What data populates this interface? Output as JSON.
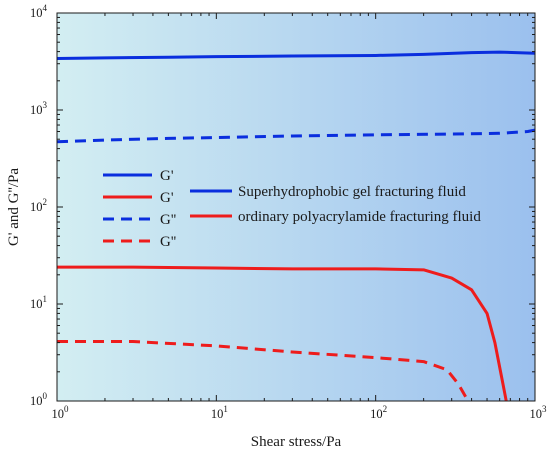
{
  "chart_data": {
    "type": "line",
    "title": "",
    "xlabel": "Shear stress/Pa",
    "ylabel": "G' and G''/Pa",
    "xscale": "log",
    "yscale": "log",
    "xlim": [
      1,
      1000
    ],
    "ylim": [
      1,
      10000
    ],
    "x_ticks": [
      {
        "base": "10",
        "exp": "0",
        "value": 1
      },
      {
        "base": "10",
        "exp": "1",
        "value": 10
      },
      {
        "base": "10",
        "exp": "2",
        "value": 100
      },
      {
        "base": "10",
        "exp": "3",
        "value": 1000
      }
    ],
    "y_ticks": [
      {
        "base": "10",
        "exp": "0",
        "value": 1
      },
      {
        "base": "10",
        "exp": "1",
        "value": 10
      },
      {
        "base": "10",
        "exp": "2",
        "value": 100
      },
      {
        "base": "10",
        "exp": "3",
        "value": 1000
      },
      {
        "base": "10",
        "exp": "4",
        "value": 10000
      }
    ],
    "background_gradient": [
      "#d3eef2",
      "#9bc0ee"
    ],
    "grid": false,
    "legend_position": "left-center",
    "series": [
      {
        "label": "G'",
        "fluid": "Superhydrophobic gel fracturing fluid",
        "color": "#0a2ede",
        "dash": "solid",
        "x": [
          1,
          2,
          5,
          10,
          30,
          100,
          200,
          400,
          600,
          1000
        ],
        "y": [
          3400,
          3450,
          3500,
          3550,
          3600,
          3650,
          3750,
          3900,
          3950,
          3850
        ]
      },
      {
        "label": "G''",
        "fluid": "Superhydrophobic gel fracturing fluid",
        "color": "#0a2ede",
        "dash": "dashed",
        "x": [
          1,
          2,
          5,
          10,
          30,
          100,
          300,
          600,
          900,
          1000
        ],
        "y": [
          470,
          490,
          510,
          520,
          540,
          555,
          565,
          575,
          600,
          620
        ]
      },
      {
        "label": "G'",
        "fluid": "ordinary polyacrylamide fracturing fluid",
        "color": "#ee1c1c",
        "dash": "solid",
        "x": [
          1,
          3,
          10,
          30,
          100,
          200,
          300,
          400,
          500,
          560,
          620,
          660
        ],
        "y": [
          24,
          24,
          23.5,
          23,
          23,
          22.5,
          18.5,
          14,
          8,
          4,
          1.7,
          1.0
        ]
      },
      {
        "label": "G''",
        "fluid": "ordinary polyacrylamide fracturing fluid",
        "color": "#ee1c1c",
        "dash": "dashed",
        "x": [
          1,
          3,
          10,
          30,
          100,
          200,
          280,
          330,
          380
        ],
        "y": [
          4.1,
          4.1,
          3.7,
          3.2,
          2.8,
          2.55,
          2.1,
          1.5,
          1.0
        ]
      }
    ],
    "legend": {
      "column_one": [
        {
          "label": "G'",
          "color": "#0a2ede",
          "dash": "solid"
        },
        {
          "label": "G'",
          "color": "#ee1c1c",
          "dash": "solid"
        },
        {
          "label": "G''",
          "color": "#0a2ede",
          "dash": "dashed"
        },
        {
          "label": "G''",
          "color": "#ee1c1c",
          "dash": "dashed"
        }
      ],
      "column_two": [
        {
          "label": "Superhydrophobic gel fracturing fluid",
          "color": "#0a2ede",
          "dash": "solid"
        },
        {
          "label": "ordinary polyacrylamide fracturing fluid",
          "color": "#ee1c1c",
          "dash": "solid"
        }
      ]
    }
  }
}
